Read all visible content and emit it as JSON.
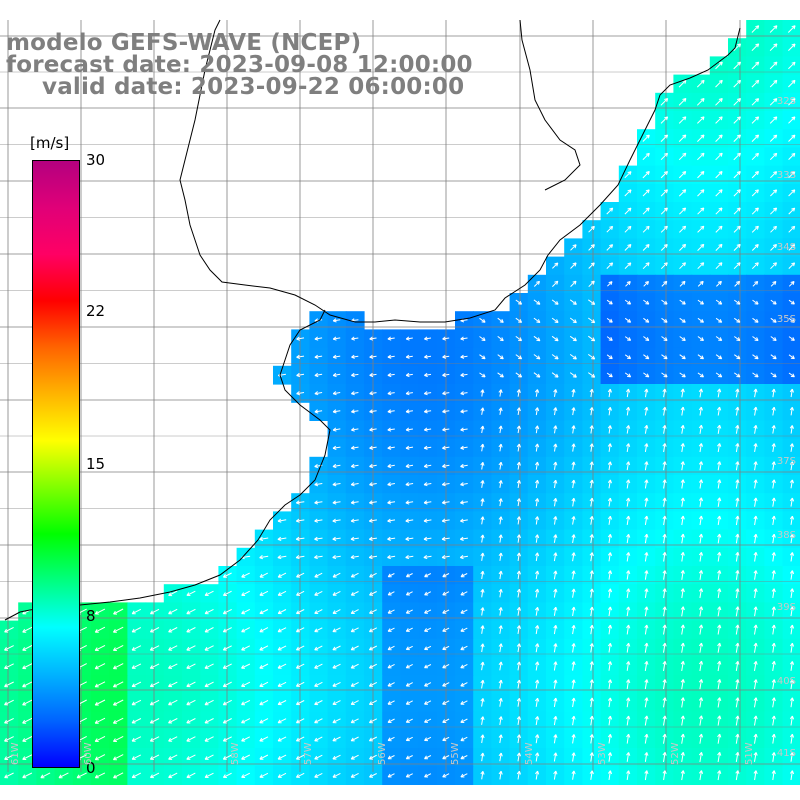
{
  "title": {
    "line1": "modelo GEFS-WAVE (NCEP)",
    "line2": "forecast date: 2023-09-08 12:00:00",
    "line3": "valid date: 2023-09-22 06:00:00"
  },
  "colorbar": {
    "unit": "[m/s]",
    "ticks": [
      "30",
      "22",
      "15",
      "8",
      "0"
    ],
    "min": 0,
    "max": 30,
    "colors": [
      "#0000ff",
      "#0064ff",
      "#00b4ff",
      "#00ffff",
      "#00ff80",
      "#00ff00",
      "#80ff00",
      "#ffff00",
      "#ffb400",
      "#ff6400",
      "#ff0000",
      "#ff0064",
      "#e00078",
      "#b4007f"
    ]
  },
  "grid_labels": {
    "lat": [
      "32S",
      "33S",
      "34S",
      "35S",
      "37S",
      "38S",
      "39S",
      "40S",
      "41S"
    ],
    "lon": [
      "61W",
      "60W",
      "58W",
      "57W",
      "56W",
      "55W",
      "54W",
      "53W",
      "52W",
      "51W"
    ]
  },
  "colors": {
    "land": "#ffffff",
    "coast": "#000000",
    "grid": "#7f7f7f",
    "arrow": "#ffffff"
  }
}
